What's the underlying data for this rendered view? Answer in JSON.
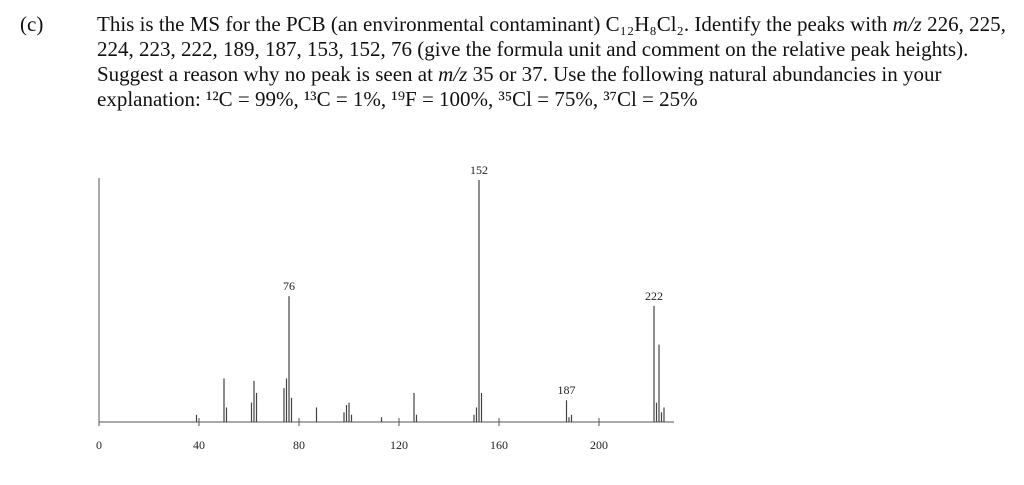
{
  "label": "(c)",
  "question": [
    "This is the MS for the PCB (an environmental contaminant) C₁₂H₈Cl₂. Identify the peaks with ",
    "m/z",
    " 226, 225, 224, 223, 222, 189, 187, 153, 152, 76 (give the formula unit and comment on the relative peak heights). Suggest a reason why no peak is seen at ",
    "m/z",
    " 35 or 37. Use the following natural abundancies in your explanation: ¹²C = 99%, ¹³C = 1%, ¹⁹F = 100%, ³⁵Cl = 75%, ³⁷Cl = 25%"
  ],
  "chart_data": {
    "type": "stem",
    "x": [
      39,
      50,
      51,
      61,
      62,
      63,
      74,
      75,
      76,
      77,
      87,
      98,
      99,
      100,
      101,
      113,
      126,
      127,
      150,
      151,
      152,
      153,
      187,
      188,
      189,
      222,
      223,
      224,
      225,
      226
    ],
    "values": [
      3,
      18,
      6,
      8,
      17,
      12,
      14,
      18,
      52,
      10,
      6,
      4,
      7,
      8,
      3,
      2,
      12,
      3,
      3,
      6,
      100,
      12,
      9,
      2,
      3,
      48,
      8,
      32,
      4,
      6
    ],
    "peak_labels": [
      76,
      152,
      187,
      222
    ],
    "xlim": [
      0,
      230
    ],
    "ylim": [
      0,
      100
    ],
    "xticks": [
      0,
      40,
      80,
      120,
      160,
      200
    ],
    "color": "#444444"
  }
}
